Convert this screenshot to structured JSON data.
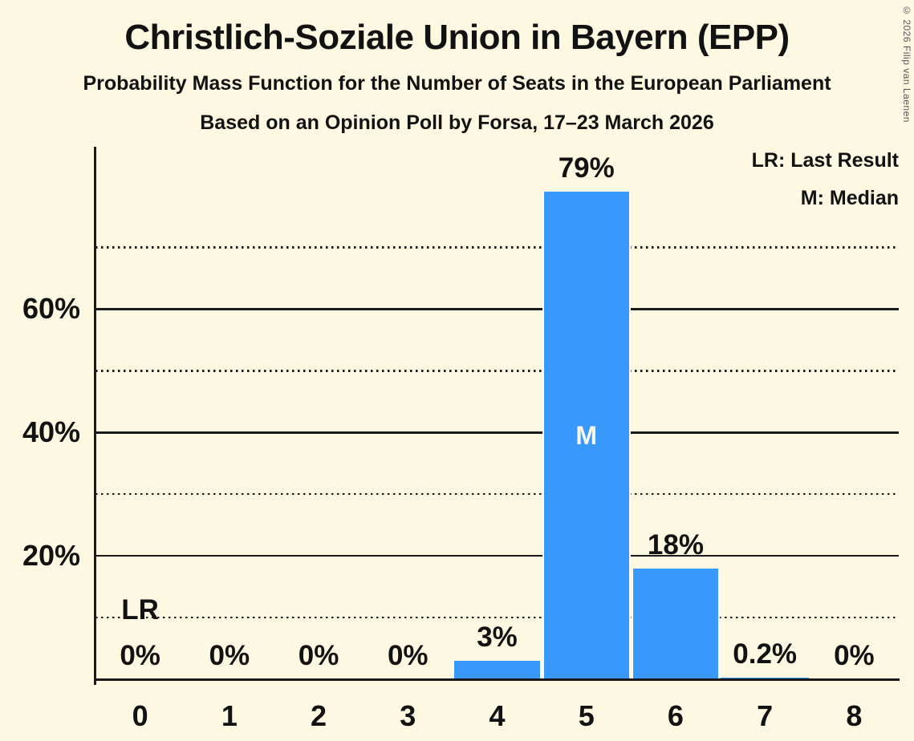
{
  "header": {
    "title": "Christlich-Soziale Union in Bayern (EPP)",
    "subtitle": "Probability Mass Function for the Number of Seats in the European Parliament",
    "poll_line": "Based on an Opinion Poll by Forsa, 17–23 March 2026"
  },
  "copyright": "© 2026 Filip van Laenen",
  "legend": {
    "last_result": "LR: Last Result",
    "median": "M: Median"
  },
  "chart_data": {
    "type": "bar",
    "title": "Christlich-Soziale Union in Bayern (EPP)",
    "subtitle": "Probability Mass Function for the Number of Seats in the European Parliament",
    "source_line": "Based on an Opinion Poll by Forsa, 17–23 March 2026",
    "categories": [
      "0",
      "1",
      "2",
      "3",
      "4",
      "5",
      "6",
      "7",
      "8"
    ],
    "values": [
      0,
      0,
      0,
      0,
      3,
      79,
      18,
      0.2,
      0
    ],
    "value_labels": [
      "0%",
      "0%",
      "0%",
      "0%",
      "3%",
      "79%",
      "18%",
      "0.2%",
      "0%"
    ],
    "xlabel": "",
    "ylabel": "",
    "ylim": [
      0,
      86.3
    ],
    "y_axis_labels": [
      {
        "value": 20,
        "label": "20%"
      },
      {
        "value": 40,
        "label": "40%"
      },
      {
        "value": 60,
        "label": "60%"
      }
    ],
    "gridlines": {
      "solid": [
        20,
        40,
        60
      ],
      "dotted": [
        10,
        30,
        50,
        70
      ]
    },
    "legend_position": "top-right",
    "median": {
      "seat_index": 5,
      "marker": "M"
    },
    "last_result": {
      "seat_index": 0,
      "marker": "LR"
    },
    "bar_color": "#3999FA",
    "bar_border_color": "#FFFFFF",
    "background_color": "#FDF8E1",
    "axis_color": "#1A1A1A",
    "text_color": "#121212"
  }
}
